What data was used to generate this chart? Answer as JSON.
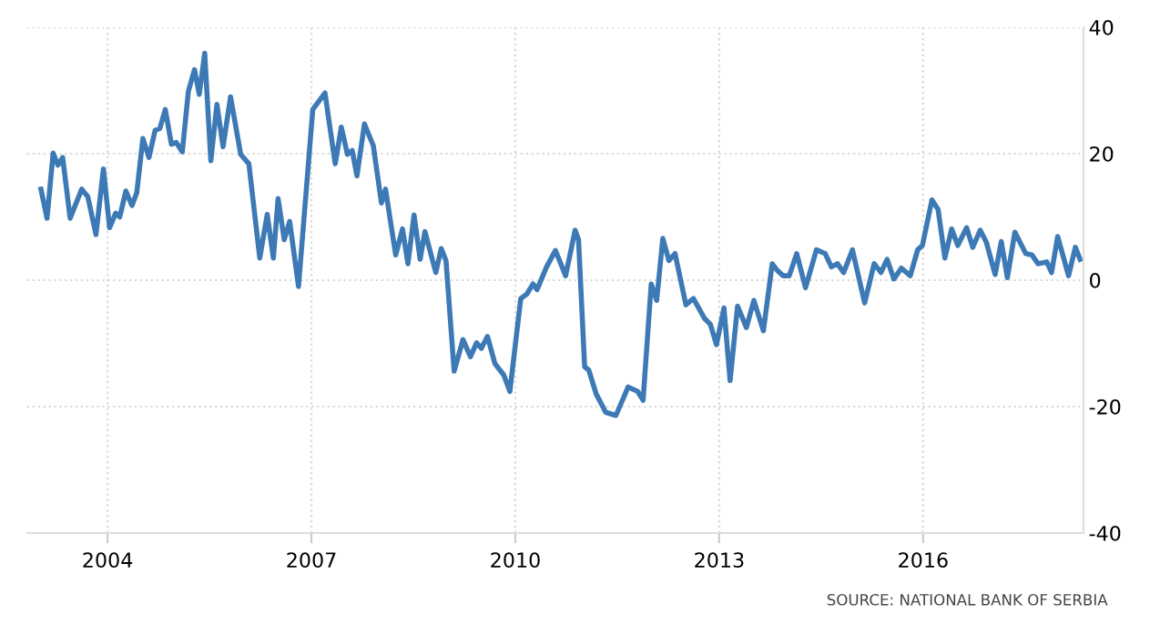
{
  "chart_data": {
    "type": "line",
    "x": [
      2003.02,
      2003.11,
      2003.2,
      2003.27,
      2003.34,
      2003.45,
      2003.62,
      2003.71,
      2003.83,
      2003.94,
      2004.03,
      2004.12,
      2004.18,
      2004.27,
      2004.36,
      2004.43,
      2004.52,
      2004.61,
      2004.7,
      2004.77,
      2004.85,
      2004.94,
      2005.01,
      2005.1,
      2005.19,
      2005.28,
      2005.35,
      2005.43,
      2005.52,
      2005.61,
      2005.7,
      2005.81,
      2005.96,
      2006.08,
      2006.24,
      2006.35,
      2006.44,
      2006.51,
      2006.6,
      2006.68,
      2006.81,
      2007.02,
      2007.2,
      2007.35,
      2007.44,
      2007.53,
      2007.6,
      2007.67,
      2007.78,
      2007.91,
      2008.03,
      2008.09,
      2008.24,
      2008.34,
      2008.42,
      2008.51,
      2008.6,
      2008.67,
      2008.83,
      2008.91,
      2008.98,
      2009.1,
      2009.23,
      2009.34,
      2009.43,
      2009.5,
      2009.59,
      2009.7,
      2009.83,
      2009.92,
      2010.08,
      2010.17,
      2010.26,
      2010.32,
      2010.46,
      2010.59,
      2010.74,
      2010.88,
      2010.93,
      2011.02,
      2011.08,
      2011.19,
      2011.33,
      2011.48,
      2011.66,
      2011.8,
      2011.88,
      2012.0,
      2012.08,
      2012.17,
      2012.26,
      2012.35,
      2012.51,
      2012.62,
      2012.78,
      2012.87,
      2012.96,
      2013.07,
      2013.16,
      2013.27,
      2013.4,
      2013.51,
      2013.65,
      2013.78,
      2013.85,
      2013.94,
      2014.03,
      2014.14,
      2014.27,
      2014.43,
      2014.56,
      2014.65,
      2014.74,
      2014.83,
      2014.96,
      2015.14,
      2015.28,
      2015.38,
      2015.47,
      2015.57,
      2015.68,
      2015.81,
      2015.92,
      2015.99,
      2016.13,
      2016.22,
      2016.32,
      2016.42,
      2016.51,
      2016.64,
      2016.73,
      2016.84,
      2016.93,
      2017.06,
      2017.15,
      2017.24,
      2017.35,
      2017.51,
      2017.6,
      2017.69,
      2017.82,
      2017.89,
      2017.98,
      2018.14,
      2018.24,
      2018.31
    ],
    "series": [
      {
        "color": "#3d7ab5",
        "values": [
          14.4,
          9.8,
          20.1,
          18.2,
          19.4,
          9.8,
          14.4,
          13.2,
          7.2,
          17.6,
          8.3,
          10.6,
          10,
          14.1,
          11.8,
          13.8,
          22.4,
          19.4,
          23.7,
          24,
          27,
          21.5,
          21.8,
          20.3,
          29.9,
          33.3,
          29.4,
          35.9,
          18.9,
          27.8,
          21.1,
          29,
          19.9,
          18.4,
          3.5,
          10.4,
          3.5,
          12.9,
          6.4,
          9.3,
          -1,
          27,
          29.6,
          18.4,
          24.2,
          19.9,
          20.5,
          16.5,
          24.7,
          21.3,
          12.2,
          14.4,
          4,
          8.1,
          2.6,
          10.3,
          3.3,
          7.7,
          1.2,
          5,
          3.1,
          -14.4,
          -9.4,
          -12.1,
          -9.9,
          -10.8,
          -8.9,
          -13.2,
          -15,
          -17.6,
          -2.9,
          -2.2,
          -0.6,
          -1.5,
          2.1,
          4.7,
          0.7,
          7.9,
          6.4,
          -13.7,
          -14.2,
          -18,
          -20.9,
          -21.4,
          -16.9,
          -17.6,
          -19,
          -0.6,
          -3.2,
          6.6,
          3.1,
          4.2,
          -3.9,
          -2.9,
          -6,
          -7,
          -10.2,
          -4.4,
          -15.9,
          -4.1,
          -7.5,
          -3.2,
          -8,
          2.6,
          1.6,
          0.7,
          0.7,
          4.2,
          -1.2,
          4.8,
          4.2,
          2.1,
          2.6,
          1.2,
          4.8,
          -3.6,
          2.6,
          1.2,
          3.3,
          0.2,
          1.9,
          0.7,
          4.8,
          5.5,
          12.7,
          11.2,
          3.5,
          8.1,
          5.5,
          8.3,
          5.2,
          7.9,
          6,
          0.9,
          6.1,
          0.4,
          7.6,
          4.2,
          4,
          2.6,
          2.9,
          1.2,
          6.9,
          0.7,
          5.2,
          3.3
        ]
      }
    ],
    "xlim": [
      2002.82,
      2018.36
    ],
    "xticks": [
      2004,
      2007,
      2010,
      2013,
      2016
    ],
    "ylim": [
      -40,
      40
    ],
    "yticks": [
      -40,
      -20,
      0,
      20,
      40
    ],
    "grid": true,
    "legend": false,
    "annotations": [
      "SOURCE: NATIONAL BANK OF SERBIA"
    ]
  }
}
